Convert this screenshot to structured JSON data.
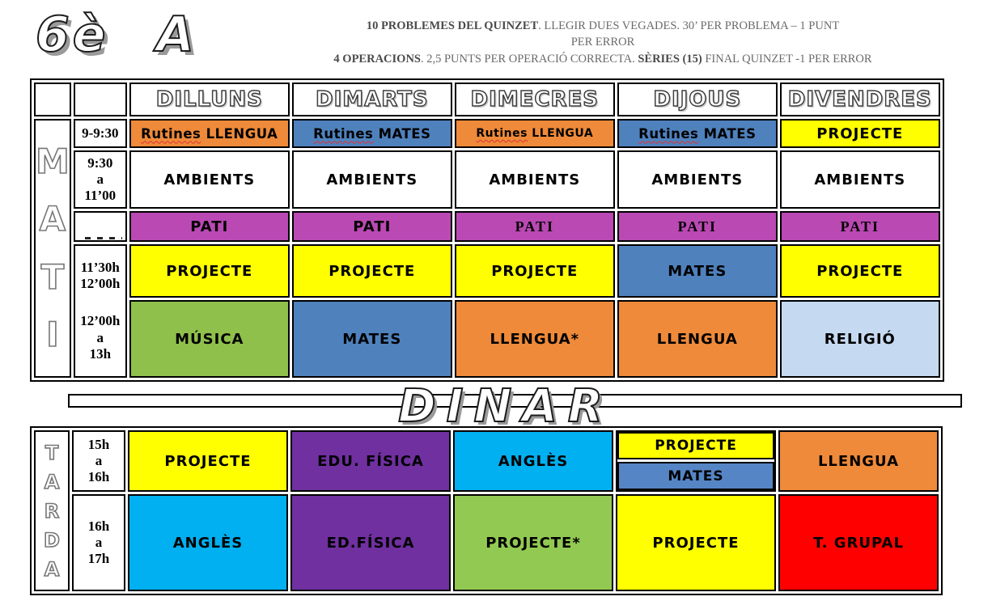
{
  "page_title": "6è A",
  "dinar_label": "DINAR",
  "notes": {
    "lines": [
      {
        "segs": [
          {
            "t": "10 PROBLEMES DEL QUINZET",
            "b": true
          },
          {
            "t": ". LLEGIR DUES VEGADES. 30’ PER PROBLEMA – 1 PUNT",
            "b": false
          }
        ]
      },
      {
        "segs": [
          {
            "t": "PER ERROR",
            "b": false
          }
        ]
      },
      {
        "segs": [
          {
            "t": "4 OPERACIONS",
            "b": true
          },
          {
            "t": ". 2,5 PUNTS PER OPERACIÓ CORRECTA. ",
            "b": false
          },
          {
            "t": "SÈRIES (15)",
            "b": true
          },
          {
            "t": " FINAL QUINZET -1 PER ERROR",
            "b": false
          }
        ]
      }
    ]
  },
  "days": [
    "DILLUNS",
    "DIMARTS",
    "DIMECRES",
    "DIJOUS",
    "DIVENDRES"
  ],
  "morning": {
    "side_label": "MATI",
    "rows": [
      {
        "time_groups": [
          [
            "9-9:30"
          ]
        ],
        "cells": [
          {
            "text": "Rutines LLENGUA",
            "bg": "#EE8A3A",
            "spell": true
          },
          {
            "text": "Rutines MATES",
            "bg": "#4F81BD",
            "spell": true
          },
          {
            "text": "Rutines LLENGUA",
            "bg": "#EE8A3A",
            "spell": true,
            "small": true
          },
          {
            "text": "Rutines MATES",
            "bg": "#4F81BD",
            "spell": true
          },
          {
            "text": "PROJECTE",
            "bg": "#FFFF00"
          }
        ]
      },
      {
        "time_groups": [
          [
            "9:30",
            "a",
            "11’00"
          ]
        ],
        "cells": [
          {
            "text": "AMBIENTS",
            "bg": "#FFFFFF"
          },
          {
            "text": "AMBIENTS",
            "bg": "#FFFFFF"
          },
          {
            "text": "AMBIENTS",
            "bg": "#FFFFFF"
          },
          {
            "text": "AMBIENTS",
            "bg": "#FFFFFF"
          },
          {
            "text": "AMBIENTS",
            "bg": "#FFFFFF"
          }
        ]
      },
      {
        "time_groups": [],
        "clipped": true,
        "cells": [
          {
            "text": "PATI",
            "bg": "#BA49B3"
          },
          {
            "text": "PATI",
            "bg": "#BA49B3"
          },
          {
            "text": "PATI",
            "bg": "#BA49B3",
            "serif": true
          },
          {
            "text": "PATI",
            "bg": "#BA49B3",
            "serif": true
          },
          {
            "text": "PATI",
            "bg": "#BA49B3",
            "serif": true
          }
        ]
      },
      {
        "time_groups": [
          [
            "11’30h",
            "12’00h"
          ],
          [
            "12’00h",
            "a",
            "13h"
          ]
        ],
        "time_rowspan": 2,
        "cells": [
          {
            "text": "PROJECTE",
            "bg": "#FFFF00"
          },
          {
            "text": "PROJECTE",
            "bg": "#FFFF00"
          },
          {
            "text": "PROJECTE",
            "bg": "#FFFF00"
          },
          {
            "text": "MATES",
            "bg": "#4F81BD"
          },
          {
            "text": "PROJECTE",
            "bg": "#FFFF00"
          }
        ]
      },
      {
        "no_time": true,
        "cells": [
          {
            "text": "MÚSICA",
            "bg": "#8FC04C"
          },
          {
            "text": "MATES",
            "bg": "#4F81BD"
          },
          {
            "text": "LLENGUA*",
            "bg": "#EE8A3A"
          },
          {
            "text": "LLENGUA",
            "bg": "#EE8A3A"
          },
          {
            "text": "RELIGIÓ",
            "bg": "#C5D9F1"
          }
        ]
      }
    ]
  },
  "afternoon": {
    "side_label": "TARDA",
    "rows": [
      {
        "time_groups": [
          [
            "15h",
            "a",
            "16h"
          ]
        ],
        "cells": [
          {
            "text": "PROJECTE",
            "bg": "#FFFF00"
          },
          {
            "text": "EDU. FÍSICA",
            "bg": "#7030A0"
          },
          {
            "text": "ANGLÈS",
            "bg": "#00B0F0"
          },
          {
            "split": [
              {
                "text": "PROJECTE",
                "bg": "#FFFF00"
              },
              {
                "text": "MATES",
                "bg": "#5585C5"
              }
            ]
          },
          {
            "text": "LLENGUA",
            "bg": "#EE8A3A"
          }
        ]
      },
      {
        "time_groups": [
          [
            "16h",
            "a",
            "17h"
          ]
        ],
        "cells": [
          {
            "text": "ANGLÈS",
            "bg": "#00B0F0"
          },
          {
            "text": "ED.FÍSICA",
            "bg": "#7030A0"
          },
          {
            "text": "PROJECTE*",
            "bg": "#92C952"
          },
          {
            "text": "PROJECTE",
            "bg": "#FFFF00"
          },
          {
            "text": "T. GRUPAL",
            "bg": "#FF0000"
          }
        ]
      }
    ]
  }
}
